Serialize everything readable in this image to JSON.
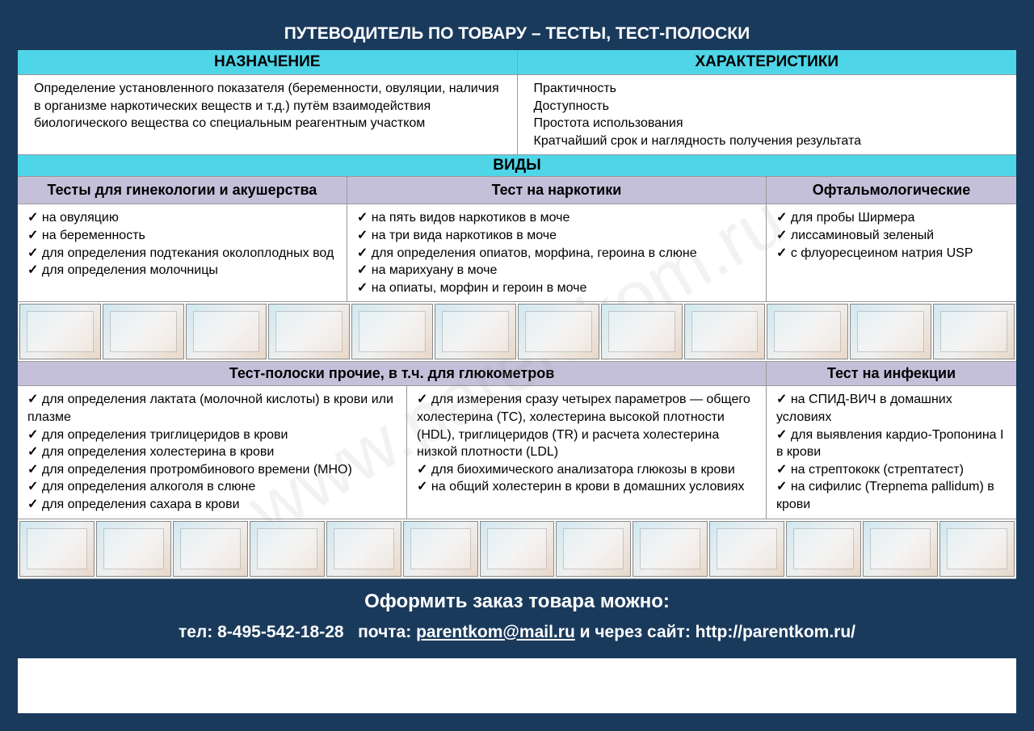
{
  "colors": {
    "dark_blue": "#1a3a5c",
    "cyan": "#4fd5e8",
    "lavender": "#c5c0da",
    "white": "#ffffff",
    "text": "#000000",
    "border": "#999999"
  },
  "title": "ПУТЕВОДИТЕЛЬ ПО ТОВАРУ – ТЕСТЫ, ТЕСТ-ПОЛОСКИ",
  "top_headers": {
    "left": "НАЗНАЧЕНИЕ",
    "right": "ХАРАКТЕРИСТИКИ"
  },
  "purpose_text": "Определение установленного показателя (беременности, овуляции, наличия в организме наркотических веществ и т.д.) путём взаимодействия биологического вещества со специальным реагентным участком",
  "characteristics": [
    "Практичность",
    "Доступность",
    "Простота использования",
    "Кратчайший срок и наглядность получения результата"
  ],
  "types_header": "ВИДЫ",
  "categories1": {
    "gyneco": {
      "title": "Тесты для гинекологии и акушерства",
      "items": [
        "на овуляцию",
        "на беременность",
        "для определения подтекания околоплодных вод",
        "для определения молочницы"
      ]
    },
    "drugs": {
      "title": "Тест на наркотики",
      "items": [
        "на пять видов наркотиков в моче",
        "на три вида наркотиков в моче",
        "для определения опиатов, морфина, героина в слюне",
        "на марихуану в моче",
        "на опиаты, морфин и героин в моче"
      ]
    },
    "ophthal": {
      "title": "Офтальмологические",
      "items": [
        "для пробы Ширмера",
        "лиссаминовый зеленый",
        "с флуоресцеином натрия USP"
      ]
    }
  },
  "categories2": {
    "strips": {
      "title": "Тест-полоски прочие, в т.ч. для глюкометров",
      "col1": [
        "для определения лактата (молочной кислоты) в крови или плазме",
        "для определения триглицеридов в крови",
        "для определения холестерина в крови",
        "для определения протромбинового времени (МНО)",
        "для определения алкоголя в слюне",
        "для определения сахара в крови"
      ],
      "col2": [
        "для измерения сразу четырех параметров — общего холестерина (TC), холестерина высокой плотности (HDL), триглицеридов (TR) и расчета холестерина низкой плотности (LDL)",
        "для биохимического анализатора глюкозы в крови",
        "на общий холестерин в крови в домашних условиях"
      ]
    },
    "infections": {
      "title": "Тест на инфекции",
      "items": [
        "на СПИД-ВИЧ в домашних условиях",
        "для выявления кардио-Тропонина I в крови",
        "на стрептококк (стрептатест)",
        "на сифилис (Trepnema pallidum) в крови"
      ]
    }
  },
  "product_strip1_count": 12,
  "product_strip2_count": 13,
  "footer": {
    "line1": "Оформить заказ товара можно:",
    "tel_label": "тел:",
    "tel": "8-495-542-18-28",
    "mail_label": "почта:",
    "mail": "parentkom@mail.ru",
    "site_label": "и через сайт:",
    "site": "http://parentkom.ru/"
  },
  "watermark": "www.parentkom.ru"
}
